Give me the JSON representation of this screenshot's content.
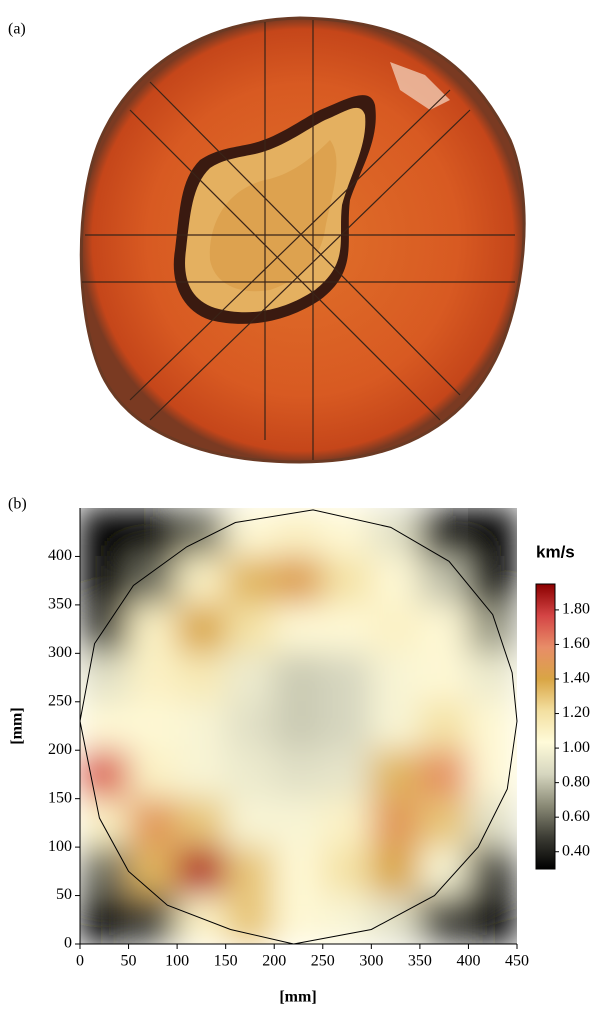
{
  "panel_a": {
    "label": "(a)"
  },
  "chart_data": {
    "type": "heatmap",
    "label": "(b)",
    "xlabel": "[mm]",
    "ylabel": "[mm]",
    "xlim": [
      0,
      450
    ],
    "ylim": [
      0,
      450
    ],
    "xticks": [
      0,
      50,
      100,
      150,
      200,
      250,
      300,
      350,
      400,
      450
    ],
    "yticks": [
      0,
      50,
      100,
      150,
      200,
      250,
      300,
      350,
      400
    ],
    "x": [
      25,
      75,
      125,
      175,
      225,
      275,
      325,
      375,
      425
    ],
    "y": [
      425,
      375,
      325,
      275,
      225,
      175,
      125,
      75,
      25
    ],
    "z": [
      [
        0.3,
        0.3,
        0.6,
        1.05,
        1.1,
        1.05,
        0.9,
        0.35,
        0.3
      ],
      [
        0.3,
        0.6,
        1.1,
        1.35,
        1.45,
        1.2,
        1.05,
        0.8,
        0.3
      ],
      [
        0.5,
        1.1,
        1.4,
        1.2,
        1.05,
        1.05,
        1.1,
        1.05,
        0.7
      ],
      [
        0.9,
        1.1,
        1.15,
        0.95,
        0.82,
        0.85,
        1.0,
        1.05,
        0.95
      ],
      [
        1.05,
        1.05,
        1.0,
        0.9,
        0.82,
        0.85,
        1.0,
        1.2,
        1.05
      ],
      [
        1.7,
        1.1,
        1.0,
        0.95,
        0.9,
        0.92,
        1.35,
        1.55,
        1.05
      ],
      [
        1.1,
        1.5,
        1.3,
        1.0,
        1.0,
        1.1,
        1.5,
        1.3,
        0.9
      ],
      [
        0.6,
        1.35,
        1.85,
        1.3,
        1.05,
        1.2,
        1.4,
        1.0,
        0.5
      ],
      [
        0.3,
        0.5,
        1.1,
        1.3,
        1.05,
        1.0,
        0.9,
        0.5,
        0.3
      ]
    ],
    "outline": {
      "x": [
        220,
        155,
        90,
        50,
        20,
        0,
        15,
        55,
        110,
        160,
        240,
        320,
        380,
        425,
        445,
        450,
        440,
        410,
        365,
        300,
        220
      ],
      "y": [
        0,
        15,
        40,
        75,
        130,
        230,
        310,
        370,
        410,
        435,
        448,
        430,
        395,
        340,
        280,
        230,
        160,
        100,
        50,
        15,
        0
      ]
    },
    "colorbar": {
      "title": "km/s",
      "zlim": [
        0.3,
        1.95
      ],
      "colorscale": [
        "#000000",
        "#3c3c34",
        "#8a8a76",
        "#d6d6bf",
        "#fffbd9",
        "#f3dfa0",
        "#d9a545",
        "#e88d68",
        "#d44545",
        "#8b0000"
      ],
      "ticks": [
        {
          "value": 0.4,
          "label": "0.40"
        },
        {
          "value": 0.6,
          "label": "0.60"
        },
        {
          "value": 0.8,
          "label": "0.80"
        },
        {
          "value": 1.0,
          "label": "1.00"
        },
        {
          "value": 1.2,
          "label": "1.20"
        },
        {
          "value": 1.4,
          "label": "1.40"
        },
        {
          "value": 1.6,
          "label": "1.60"
        },
        {
          "value": 1.8,
          "label": "1.80"
        }
      ]
    }
  }
}
